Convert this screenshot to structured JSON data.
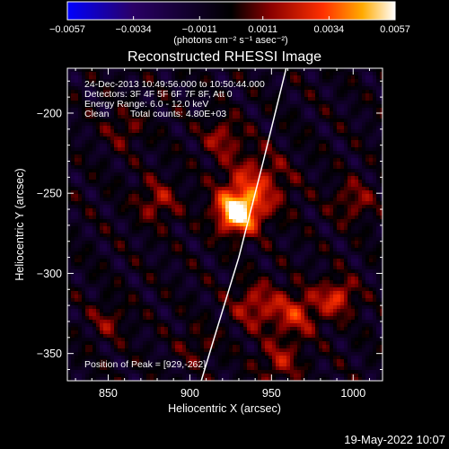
{
  "chart_data": {
    "type": "heatmap",
    "title": "Reconstructed RHESSI Image",
    "xlabel": "Heliocentric X (arcsec)",
    "ylabel": "Heliocentric Y (arcsec)",
    "xlim": [
      825,
      1018
    ],
    "ylim": [
      -367,
      -172
    ],
    "x_ticks": [
      850,
      900,
      950,
      1000
    ],
    "x_tick_labels": [
      "850",
      "900",
      "950",
      "1000"
    ],
    "y_ticks": [
      -200,
      -250,
      -300,
      -350
    ],
    "y_tick_labels": [
      "−200",
      "−250",
      "−300",
      "−350"
    ],
    "colorbar": {
      "ticks": [
        "−0.0057",
        "−0.0034",
        "−0.0011",
        "0.0011",
        "0.0034",
        "0.0057"
      ],
      "range": [
        -0.0057,
        0.0057
      ],
      "unit_label": "(photons cm⁻² s⁻¹ asec⁻²)",
      "colors": [
        "#0000ff",
        "#2a0066",
        "#000000",
        "#8a0000",
        "#ff3000",
        "#ffaa00",
        "#ffffff"
      ]
    },
    "sources": [
      {
        "x": 929,
        "y": -262,
        "peak": 1.0,
        "sigma": 9
      },
      {
        "x": 940,
        "y": -245,
        "peak": 0.45,
        "sigma": 14
      },
      {
        "x": 965,
        "y": -325,
        "peak": 0.45,
        "sigma": 10
      },
      {
        "x": 990,
        "y": -315,
        "peak": 0.5,
        "sigma": 8
      },
      {
        "x": 940,
        "y": -320,
        "peak": 0.4,
        "sigma": 10
      },
      {
        "x": 880,
        "y": -255,
        "peak": 0.35,
        "sigma": 9
      },
      {
        "x": 1000,
        "y": -255,
        "peak": 0.3,
        "sigma": 9
      },
      {
        "x": 920,
        "y": -215,
        "peak": 0.35,
        "sigma": 8
      },
      {
        "x": 860,
        "y": -210,
        "peak": 0.25,
        "sigma": 8
      },
      {
        "x": 955,
        "y": -355,
        "peak": 0.35,
        "sigma": 9
      },
      {
        "x": 905,
        "y": -345,
        "peak": 0.2,
        "sigma": 8
      },
      {
        "x": 850,
        "y": -330,
        "peak": 0.25,
        "sigma": 8
      }
    ],
    "limb": [
      {
        "x": 959,
        "y": -172
      },
      {
        "x": 945,
        "y": -230
      },
      {
        "x": 930,
        "y": -290
      },
      {
        "x": 915,
        "y": -340
      },
      {
        "x": 907,
        "y": -367
      }
    ],
    "annotations": {
      "time_range": "24-Dec-2013 10:49:56.000 to 10:50:44.000",
      "detectors": "Detectors: 3F 4F 5F 6F 7F 8F, Att 0",
      "energy": "Energy Range: 6.0 - 12.0 keV",
      "algorithm": "Clean",
      "counts": "Total counts: 4.80E+03",
      "peak": "Position of Peak = [929,-262]"
    }
  },
  "footer_date": "19-May-2022 10:07"
}
